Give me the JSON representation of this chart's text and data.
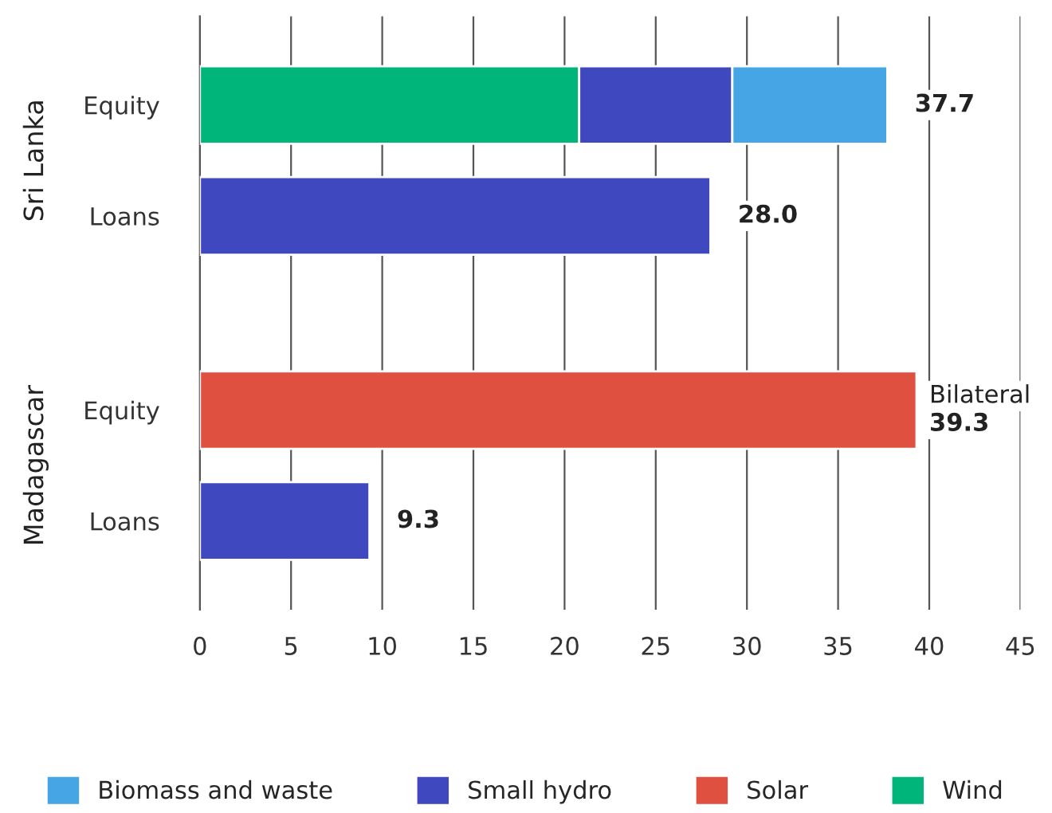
{
  "chart_data": {
    "type": "bar",
    "orientation": "horizontal",
    "stacked": true,
    "categories": [
      "Equity",
      "Loans",
      "Equity",
      "Loans"
    ],
    "series": [
      {
        "name": "Wind",
        "color": "#00b57a",
        "values": [
          20.8,
          null,
          null,
          null
        ]
      },
      {
        "name": "Solar",
        "color": "#e05040",
        "values": [
          null,
          null,
          39.3,
          null
        ]
      },
      {
        "name": "Small hydro",
        "color": "#3f48bf",
        "values": [
          8.4,
          28.0,
          null,
          9.3
        ]
      },
      {
        "name": "Biomass and waste",
        "color": "#45a5e5",
        "values": [
          8.5,
          null,
          null,
          null
        ]
      }
    ],
    "totals": [
      "37.7",
      "28.0",
      "Bilateral\n39.3",
      "9.3"
    ],
    "annotations": [
      "Sri Lanka",
      "Madagascar"
    ],
    "xlim": [
      0,
      45
    ],
    "xticks": [
      0,
      5,
      10,
      15,
      20,
      25,
      30,
      35,
      40,
      45
    ],
    "grid": "x",
    "legend": "bottom"
  }
}
